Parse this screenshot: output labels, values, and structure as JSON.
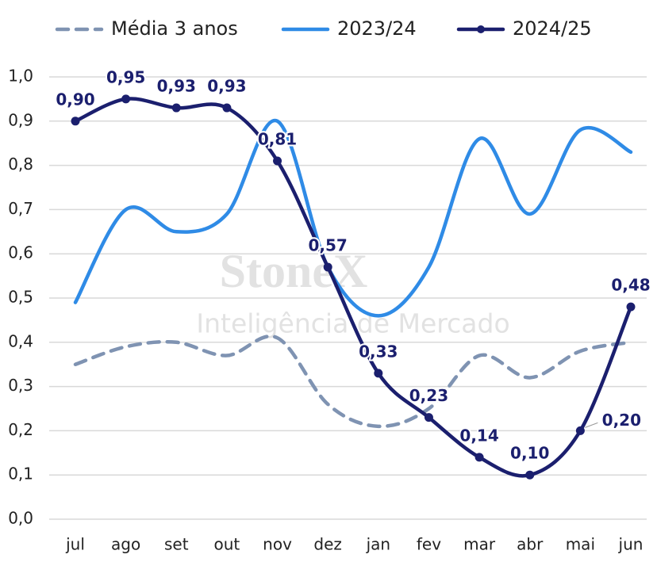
{
  "chart_data": {
    "type": "line",
    "watermark": {
      "brand": "StoneX",
      "subtitle": "Inteligência de Mercado"
    },
    "categories": [
      "jul",
      "ago",
      "set",
      "out",
      "nov",
      "dez",
      "jan",
      "fev",
      "mar",
      "abr",
      "mai",
      "jun"
    ],
    "ylim": [
      0,
      1.0
    ],
    "yticks": [
      {
        "value": 0,
        "label": "0,0"
      },
      {
        "value": 0.1,
        "label": "0,1"
      },
      {
        "value": 0.2,
        "label": "0,2"
      },
      {
        "value": 0.3,
        "label": "0,3"
      },
      {
        "value": 0.4,
        "label": "0,4"
      },
      {
        "value": 0.5,
        "label": "0,5"
      },
      {
        "value": 0.6,
        "label": "0,6"
      },
      {
        "value": 0.7,
        "label": "0,7"
      },
      {
        "value": 0.8,
        "label": "0,8"
      },
      {
        "value": 0.9,
        "label": "0,9"
      },
      {
        "value": 1.0,
        "label": "1,0"
      }
    ],
    "grid": true,
    "series": [
      {
        "name": "Média 3 anos",
        "color": "#7f93b2",
        "dashed": true,
        "values": [
          0.35,
          0.39,
          0.4,
          0.37,
          0.41,
          0.26,
          0.21,
          0.25,
          0.37,
          0.32,
          0.38,
          0.4
        ]
      },
      {
        "name": "2023/24",
        "color": "#2f8be6",
        "values": [
          0.49,
          0.7,
          0.65,
          0.69,
          0.9,
          0.57,
          0.46,
          0.57,
          0.86,
          0.69,
          0.88,
          0.83
        ]
      },
      {
        "name": "2024/25",
        "color": "#1b1f6e",
        "markers": true,
        "values": [
          0.9,
          0.95,
          0.93,
          0.93,
          0.81,
          0.57,
          0.33,
          0.23,
          0.14,
          0.1,
          0.2,
          0.48
        ],
        "value_labels": [
          "0,90",
          "0,95",
          "0,93",
          "0,93",
          "0,81",
          "0,57",
          "0,33",
          "0,23",
          "0,14",
          "0,10",
          "0,20",
          "0,48"
        ]
      }
    ]
  }
}
